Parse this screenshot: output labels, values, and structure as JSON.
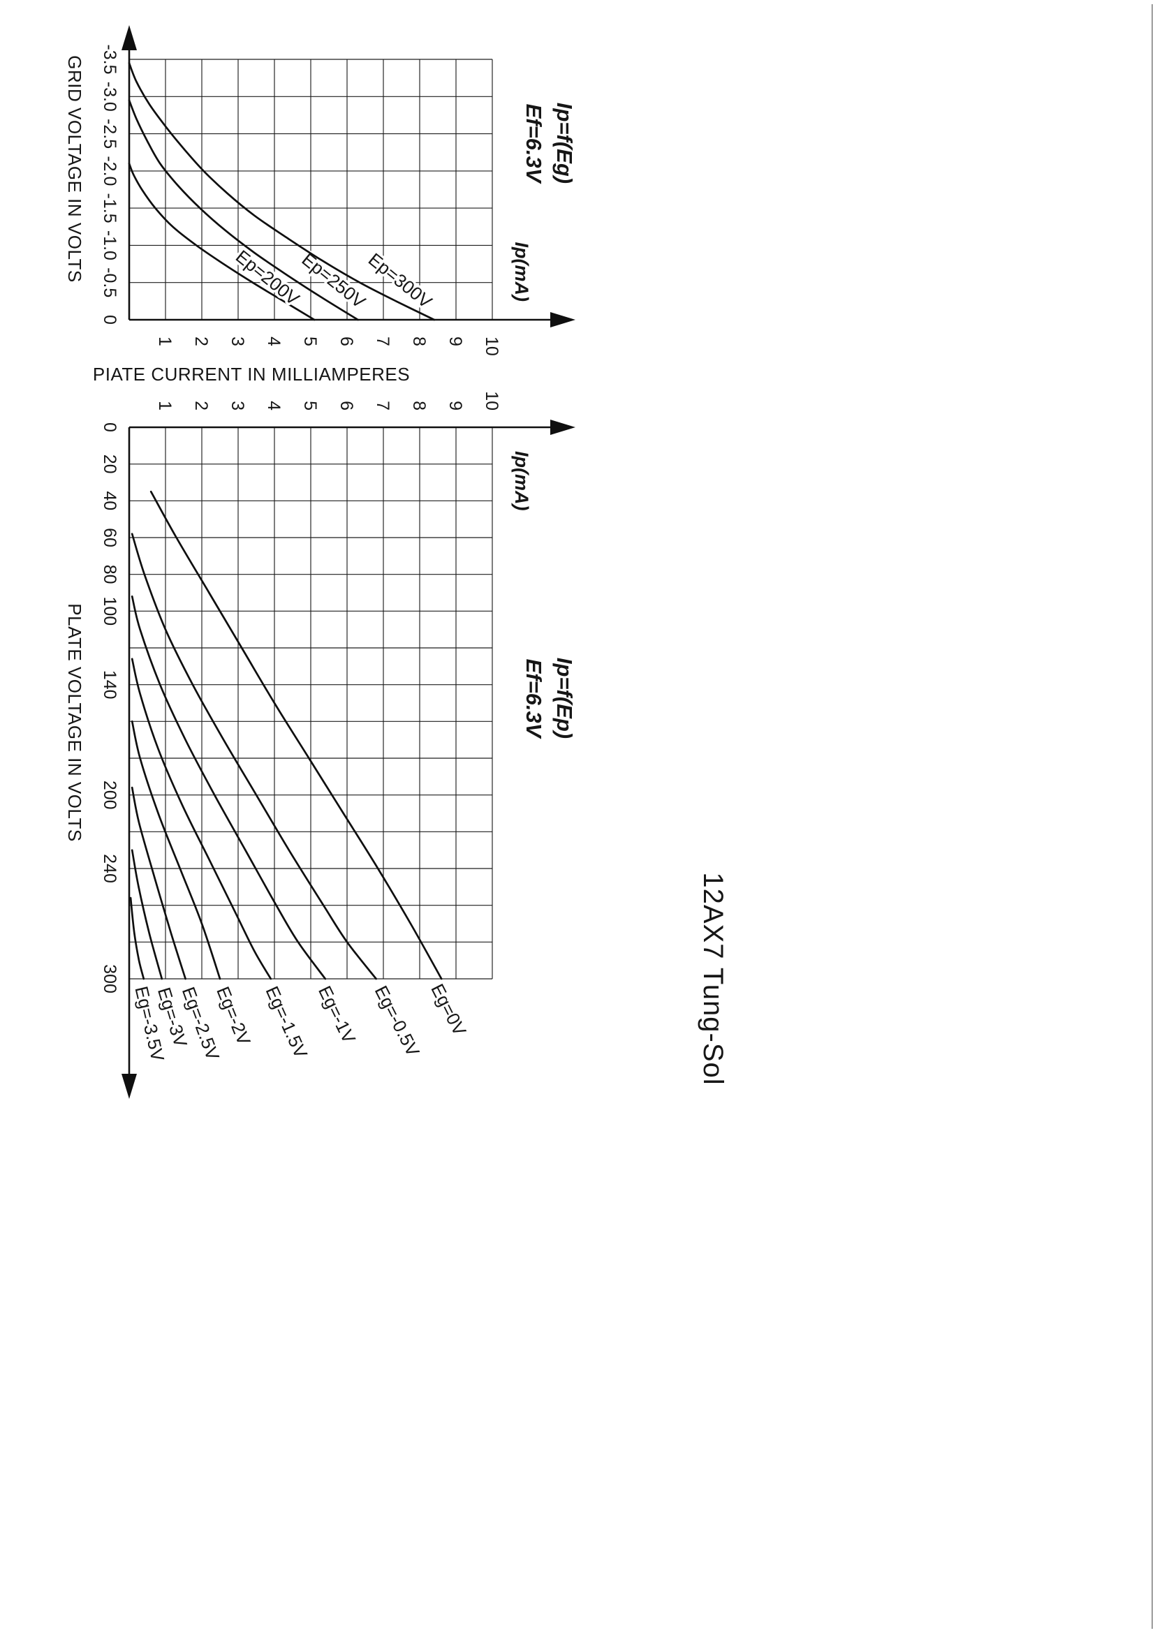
{
  "page": {
    "brand": "12AX7 Tung-Sol",
    "background": "#ffffff",
    "ink": "#161616"
  },
  "chart_data": [
    {
      "id": "transfer",
      "type": "line",
      "title": "Ip=f(Eg)",
      "subtitle": "Ef=6.3V",
      "xlabel": "GRID VOLTAGE IN VOLTS",
      "ylabel": "PIATE CURRENT IN MILLIAMPERES",
      "y_unit": "Ip(mA)",
      "xlim": [
        -3.5,
        0
      ],
      "ylim": [
        0,
        10
      ],
      "grid": true,
      "legend_position": "inline-curve-labels",
      "x_gridlines": [
        -3.5,
        -3,
        -2.5,
        -2,
        -1.5,
        -1,
        -0.5,
        0
      ],
      "x_ticks": [
        -3.5,
        -3,
        -2.5,
        -2,
        -1.5,
        -1,
        -0.5,
        0
      ],
      "x_tick_labels": [
        "-3.5",
        "-3.0",
        "-2.5",
        "-2.0",
        "-1.5",
        "-1.0",
        "-0.5",
        "0"
      ],
      "y_gridlines": [
        0,
        1,
        2,
        3,
        4,
        5,
        6,
        7,
        8,
        9,
        10
      ],
      "y_ticks": [
        1,
        2,
        3,
        4,
        5,
        6,
        7,
        8,
        9,
        10
      ],
      "y_tick_labels": [
        "1",
        "2",
        "3",
        "4",
        "5",
        "6",
        "7",
        "8",
        "9",
        "10"
      ],
      "series": [
        {
          "name": "Ep=200V",
          "label_at": [
            -0.82,
            2.9
          ],
          "label_angle": -51,
          "points": [
            [
              -2.1,
              0
            ],
            [
              -1.95,
              0.12
            ],
            [
              -1.75,
              0.35
            ],
            [
              -1.5,
              0.72
            ],
            [
              -1.25,
              1.2
            ],
            [
              -1.0,
              1.85
            ],
            [
              -0.75,
              2.6
            ],
            [
              -0.5,
              3.4
            ],
            [
              -0.25,
              4.25
            ],
            [
              0,
              5.1
            ]
          ]
        },
        {
          "name": "Ep=250V",
          "label_at": [
            -0.78,
            4.72
          ],
          "label_angle": -51,
          "points": [
            [
              -2.95,
              0
            ],
            [
              -2.7,
              0.2
            ],
            [
              -2.4,
              0.5
            ],
            [
              -2.1,
              0.85
            ],
            [
              -1.8,
              1.35
            ],
            [
              -1.5,
              1.95
            ],
            [
              -1.2,
              2.65
            ],
            [
              -0.9,
              3.45
            ],
            [
              -0.6,
              4.35
            ],
            [
              -0.3,
              5.3
            ],
            [
              0,
              6.3
            ]
          ]
        },
        {
          "name": "Ep=300V",
          "label_at": [
            -0.78,
            6.55
          ],
          "label_angle": -51,
          "points": [
            [
              -3.45,
              0
            ],
            [
              -3.2,
              0.2
            ],
            [
              -2.9,
              0.55
            ],
            [
              -2.6,
              1.0
            ],
            [
              -2.3,
              1.5
            ],
            [
              -2.0,
              2.05
            ],
            [
              -1.7,
              2.7
            ],
            [
              -1.4,
              3.45
            ],
            [
              -1.1,
              4.35
            ],
            [
              -0.8,
              5.3
            ],
            [
              -0.5,
              6.35
            ],
            [
              -0.25,
              7.35
            ],
            [
              0,
              8.4
            ]
          ]
        }
      ]
    },
    {
      "id": "plate",
      "type": "line",
      "title": "Ip=f(Ep)",
      "subtitle": "Ef=6.3V",
      "xlabel": "PLATE VOLTAGE IN VOLTS",
      "ylabel": "PIATE CURRENT IN MILLIAMPERES",
      "y_unit": "Ip(mA)",
      "xlim": [
        0,
        300
      ],
      "ylim": [
        0,
        10
      ],
      "grid": true,
      "legend_position": "inline-curve-labels",
      "x_gridlines": [
        0,
        20,
        40,
        60,
        80,
        100,
        120,
        140,
        160,
        180,
        200,
        220,
        240,
        260,
        280,
        300
      ],
      "x_ticks": [
        0,
        20,
        40,
        60,
        80,
        100,
        140,
        200,
        240,
        300
      ],
      "x_tick_labels": [
        "0",
        "20",
        "40",
        "60",
        "80",
        "100",
        "140",
        "200",
        "240",
        "300"
      ],
      "y_gridlines": [
        0,
        1,
        2,
        3,
        4,
        5,
        6,
        7,
        8,
        9,
        10
      ],
      "y_ticks": [
        1,
        2,
        3,
        4,
        5,
        6,
        7,
        8,
        9,
        10
      ],
      "y_tick_labels": [
        "1",
        "2",
        "3",
        "4",
        "5",
        "6",
        "7",
        "8",
        "9",
        "10"
      ],
      "series": [
        {
          "name": "Eg=0V",
          "label_at": [
            305,
            8.3
          ],
          "label_angle": -27,
          "points": [
            [
              35,
              0.6
            ],
            [
              60,
              1.3
            ],
            [
              90,
              2.2
            ],
            [
              120,
              3.1
            ],
            [
              150,
              4.0
            ],
            [
              180,
              4.95
            ],
            [
              210,
              5.9
            ],
            [
              240,
              6.85
            ],
            [
              270,
              7.75
            ],
            [
              300,
              8.6
            ]
          ]
        },
        {
          "name": "Eg=-0.5V",
          "label_at": [
            306,
            6.75
          ],
          "label_angle": -27,
          "points": [
            [
              58,
              0.08
            ],
            [
              80,
              0.42
            ],
            [
              110,
              1.0
            ],
            [
              140,
              1.75
            ],
            [
              170,
              2.6
            ],
            [
              200,
              3.5
            ],
            [
              230,
              4.4
            ],
            [
              260,
              5.35
            ],
            [
              280,
              6.0
            ],
            [
              300,
              6.8
            ]
          ]
        },
        {
          "name": "Eg=-1V",
          "label_at": [
            306,
            5.2
          ],
          "label_angle": -26,
          "points": [
            [
              92,
              0.08
            ],
            [
              110,
              0.3
            ],
            [
              140,
              0.85
            ],
            [
              170,
              1.55
            ],
            [
              200,
              2.35
            ],
            [
              230,
              3.2
            ],
            [
              260,
              4.05
            ],
            [
              280,
              4.65
            ],
            [
              300,
              5.4
            ]
          ]
        },
        {
          "name": "Eg=-1.5V",
          "label_at": [
            306,
            3.75
          ],
          "label_angle": -24,
          "points": [
            [
              126,
              0.08
            ],
            [
              145,
              0.3
            ],
            [
              175,
              0.8
            ],
            [
              205,
              1.45
            ],
            [
              235,
              2.2
            ],
            [
              265,
              2.95
            ],
            [
              285,
              3.45
            ],
            [
              300,
              3.9
            ]
          ]
        },
        {
          "name": "Eg=-2V",
          "label_at": [
            306,
            2.4
          ],
          "label_angle": -22,
          "points": [
            [
              160,
              0.08
            ],
            [
              180,
              0.3
            ],
            [
              210,
              0.8
            ],
            [
              240,
              1.4
            ],
            [
              270,
              2.0
            ],
            [
              300,
              2.5
            ]
          ]
        },
        {
          "name": "Eg=-2.5V",
          "label_at": [
            306,
            1.45
          ],
          "label_angle": -20,
          "points": [
            [
              196,
              0.08
            ],
            [
              215,
              0.27
            ],
            [
              245,
              0.7
            ],
            [
              275,
              1.15
            ],
            [
              300,
              1.55
            ]
          ]
        },
        {
          "name": "Eg=-3V",
          "label_at": [
            306,
            0.78
          ],
          "label_angle": -17,
          "points": [
            [
              230,
              0.08
            ],
            [
              250,
              0.26
            ],
            [
              275,
              0.55
            ],
            [
              300,
              0.9
            ]
          ]
        },
        {
          "name": "Eg=-3.5V",
          "label_at": [
            305,
            0.16
          ],
          "label_angle": -13,
          "points": [
            [
              256,
              0.04
            ],
            [
              275,
              0.14
            ],
            [
              290,
              0.27
            ],
            [
              300,
              0.4
            ]
          ]
        }
      ]
    }
  ]
}
